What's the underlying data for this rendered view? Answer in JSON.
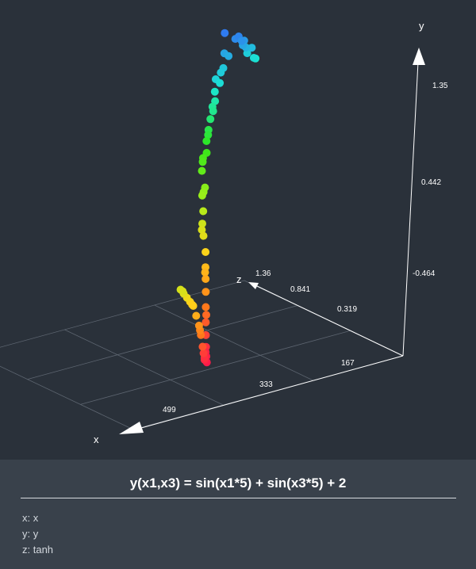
{
  "chart_data": {
    "type": "scatter",
    "title": "y(x1,x3) = sin(x1*5) + sin(x3*5) + 2",
    "axes": {
      "x": {
        "name": "x",
        "ticks": [
          "167",
          "333",
          "499"
        ]
      },
      "y": {
        "name": "y",
        "ticks": [
          "-0.464",
          "0.442",
          "1.35"
        ]
      },
      "z": {
        "name": "z",
        "ticks": [
          "0.319",
          "0.841",
          "1.36"
        ]
      }
    },
    "legend": {
      "x": "x: x",
      "y": "y: y",
      "z": "z: tanh"
    },
    "color_scale": [
      "#ff1a4a",
      "#ff7a1a",
      "#ffd21a",
      "#a6f01a",
      "#2ee61a",
      "#1ae6d2",
      "#2f7bf0"
    ],
    "x_range": [
      0,
      600
    ],
    "y_range": [
      -0.9,
      1.6
    ],
    "z_range": [
      -0.2,
      1.36
    ],
    "grid": true,
    "series": [
      {
        "points": [
          [
            0.87,
            1.02,
            1.36
          ],
          [
            12,
            1.05,
            1.33
          ],
          [
            25,
            1.1,
            1.34
          ],
          [
            38,
            1.18,
            1.3
          ],
          [
            50,
            1.22,
            1.28
          ],
          [
            60,
            1.28,
            1.25
          ],
          [
            70,
            1.3,
            1.27
          ],
          [
            85,
            1.35,
            1.31
          ],
          [
            95,
            1.2,
            1.22
          ],
          [
            110,
            1.12,
            1.2
          ],
          [
            120,
            1.1,
            1.18
          ],
          [
            135,
            1.05,
            1.12
          ],
          [
            150,
            1.0,
            1.1
          ],
          [
            160,
            0.95,
            1.05
          ],
          [
            175,
            0.9,
            1.0
          ],
          [
            185,
            0.85,
            0.98
          ],
          [
            195,
            0.78,
            0.95
          ],
          [
            210,
            0.72,
            0.9
          ],
          [
            220,
            0.65,
            0.85
          ],
          [
            235,
            0.6,
            0.82
          ],
          [
            245,
            0.55,
            0.78
          ],
          [
            255,
            0.45,
            0.7
          ],
          [
            265,
            0.4,
            0.68
          ],
          [
            275,
            0.3,
            0.62
          ],
          [
            285,
            0.22,
            0.58
          ],
          [
            295,
            0.15,
            0.52
          ],
          [
            305,
            0.05,
            0.45
          ],
          [
            315,
            -0.05,
            0.4
          ],
          [
            325,
            -0.12,
            0.35
          ],
          [
            335,
            -0.2,
            0.3
          ],
          [
            345,
            -0.3,
            0.25
          ],
          [
            355,
            -0.4,
            0.2
          ],
          [
            365,
            -0.48,
            0.15
          ],
          [
            375,
            -0.55,
            0.1
          ],
          [
            385,
            -0.6,
            0.05
          ],
          [
            395,
            -0.62,
            0.0
          ],
          [
            405,
            -0.58,
            -0.02
          ],
          [
            415,
            -0.5,
            -0.05
          ],
          [
            425,
            -0.42,
            -0.08
          ],
          [
            435,
            -0.3,
            -0.1
          ],
          [
            445,
            -0.2,
            -0.12
          ],
          [
            455,
            -0.1,
            -0.13
          ],
          [
            465,
            0.0,
            -0.14
          ],
          [
            475,
            0.05,
            -0.15
          ],
          [
            485,
            0.1,
            -0.16
          ],
          [
            495,
            0.15,
            -0.17
          ],
          [
            505,
            0.2,
            -0.18
          ],
          [
            20,
            1.15,
            1.32
          ],
          [
            45,
            1.25,
            1.29
          ],
          [
            65,
            1.32,
            1.26
          ],
          [
            100,
            1.22,
            1.24
          ],
          [
            140,
            1.08,
            1.14
          ],
          [
            170,
            0.92,
            1.03
          ],
          [
            200,
            0.75,
            0.93
          ],
          [
            230,
            0.62,
            0.84
          ],
          [
            260,
            0.42,
            0.69
          ],
          [
            290,
            0.18,
            0.56
          ],
          [
            320,
            -0.08,
            0.38
          ],
          [
            350,
            -0.35,
            0.22
          ],
          [
            380,
            -0.58,
            0.08
          ],
          [
            410,
            -0.55,
            -0.04
          ],
          [
            440,
            -0.25,
            -0.11
          ],
          [
            470,
            0.02,
            -0.15
          ],
          [
            500,
            0.18,
            -0.18
          ]
        ]
      }
    ]
  }
}
